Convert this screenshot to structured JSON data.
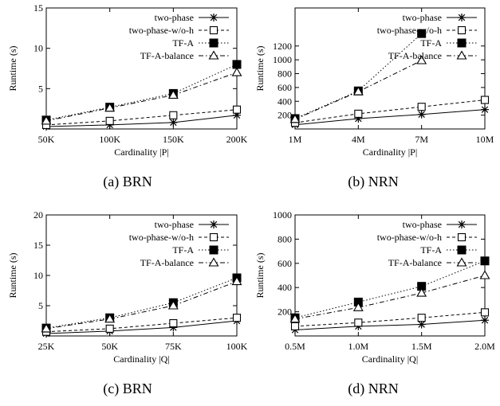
{
  "chart_data": [
    {
      "type": "line",
      "caption": "(a)  BRN",
      "xlabel": "Cardinality |P|",
      "ylabel": "Runtime (s)",
      "categories": [
        "50K",
        "100K",
        "150K",
        "200K"
      ],
      "ylim": [
        0,
        15
      ],
      "yticks": [
        "5",
        "10",
        "15"
      ],
      "legend_position": "top-left",
      "series": [
        {
          "name": "two-phase",
          "marker": "asterisk",
          "dash": "solid",
          "values": [
            0.3,
            0.5,
            0.8,
            1.7
          ]
        },
        {
          "name": "two-phase-w/o-h",
          "marker": "open-square",
          "dash": "dashed",
          "values": [
            0.5,
            1.0,
            1.7,
            2.4
          ]
        },
        {
          "name": "TF-A",
          "marker": "filled-square",
          "dash": "dotted",
          "values": [
            1.1,
            2.7,
            4.4,
            8.0
          ]
        },
        {
          "name": "TF-A-balance",
          "marker": "open-triangle",
          "dash": "dashdot",
          "values": [
            1.0,
            2.6,
            4.2,
            7.0
          ]
        }
      ]
    },
    {
      "type": "line",
      "caption": "(b)  NRN",
      "xlabel": "Cardinality |P|",
      "ylabel": "Runtime (s)",
      "categories": [
        "1M",
        "4M",
        "7M",
        "10M"
      ],
      "ylim": [
        0,
        1750
      ],
      "yticks": [
        "200",
        "400",
        "600",
        "800",
        "1000",
        "1200"
      ],
      "legend_position": "top-right",
      "series": [
        {
          "name": "two-phase",
          "marker": "asterisk",
          "dash": "solid",
          "values": [
            60,
            150,
            210,
            280
          ]
        },
        {
          "name": "two-phase-w/o-h",
          "marker": "open-square",
          "dash": "dashed",
          "values": [
            90,
            220,
            320,
            420
          ]
        },
        {
          "name": "TF-A",
          "marker": "filled-square",
          "dash": "dotted",
          "values": [
            150,
            550,
            1380,
            null
          ]
        },
        {
          "name": "TF-A-balance",
          "marker": "open-triangle",
          "dash": "dashdot",
          "values": [
            140,
            540,
            990,
            null
          ]
        }
      ]
    },
    {
      "type": "line",
      "caption": "(c)  BRN",
      "xlabel": "Cardinality |Q|",
      "ylabel": "Runtime (s)",
      "categories": [
        "25K",
        "50K",
        "75K",
        "100K"
      ],
      "ylim": [
        0,
        20
      ],
      "yticks": [
        "5",
        "10",
        "15",
        "20"
      ],
      "legend_position": "top-right",
      "series": [
        {
          "name": "two-phase",
          "marker": "asterisk",
          "dash": "solid",
          "values": [
            0.4,
            0.8,
            1.4,
            2.5
          ]
        },
        {
          "name": "two-phase-w/o-h",
          "marker": "open-square",
          "dash": "dashed",
          "values": [
            0.7,
            1.2,
            2.1,
            3.0
          ]
        },
        {
          "name": "TF-A",
          "marker": "filled-square",
          "dash": "dotted",
          "values": [
            1.3,
            3.0,
            5.5,
            9.6
          ]
        },
        {
          "name": "TF-A-balance",
          "marker": "open-triangle",
          "dash": "dashdot",
          "values": [
            1.2,
            2.8,
            5.0,
            9.0
          ]
        }
      ]
    },
    {
      "type": "line",
      "caption": "(d)  NRN",
      "xlabel": "Cardinality |Q|",
      "ylabel": "Runtime (s)",
      "categories": [
        "0.5M",
        "1.0M",
        "1.5M",
        "2.0M"
      ],
      "ylim": [
        0,
        1000
      ],
      "yticks": [
        "200",
        "400",
        "600",
        "800",
        "1000"
      ],
      "legend_position": "top-right",
      "series": [
        {
          "name": "two-phase",
          "marker": "asterisk",
          "dash": "solid",
          "values": [
            50,
            80,
            95,
            130
          ]
        },
        {
          "name": "two-phase-w/o-h",
          "marker": "open-square",
          "dash": "dashed",
          "values": [
            80,
            110,
            150,
            195
          ]
        },
        {
          "name": "TF-A",
          "marker": "filled-square",
          "dash": "dotted",
          "values": [
            150,
            280,
            410,
            620
          ]
        },
        {
          "name": "TF-A-balance",
          "marker": "open-triangle",
          "dash": "dashdot",
          "values": [
            140,
            235,
            355,
            500
          ]
        }
      ]
    }
  ]
}
